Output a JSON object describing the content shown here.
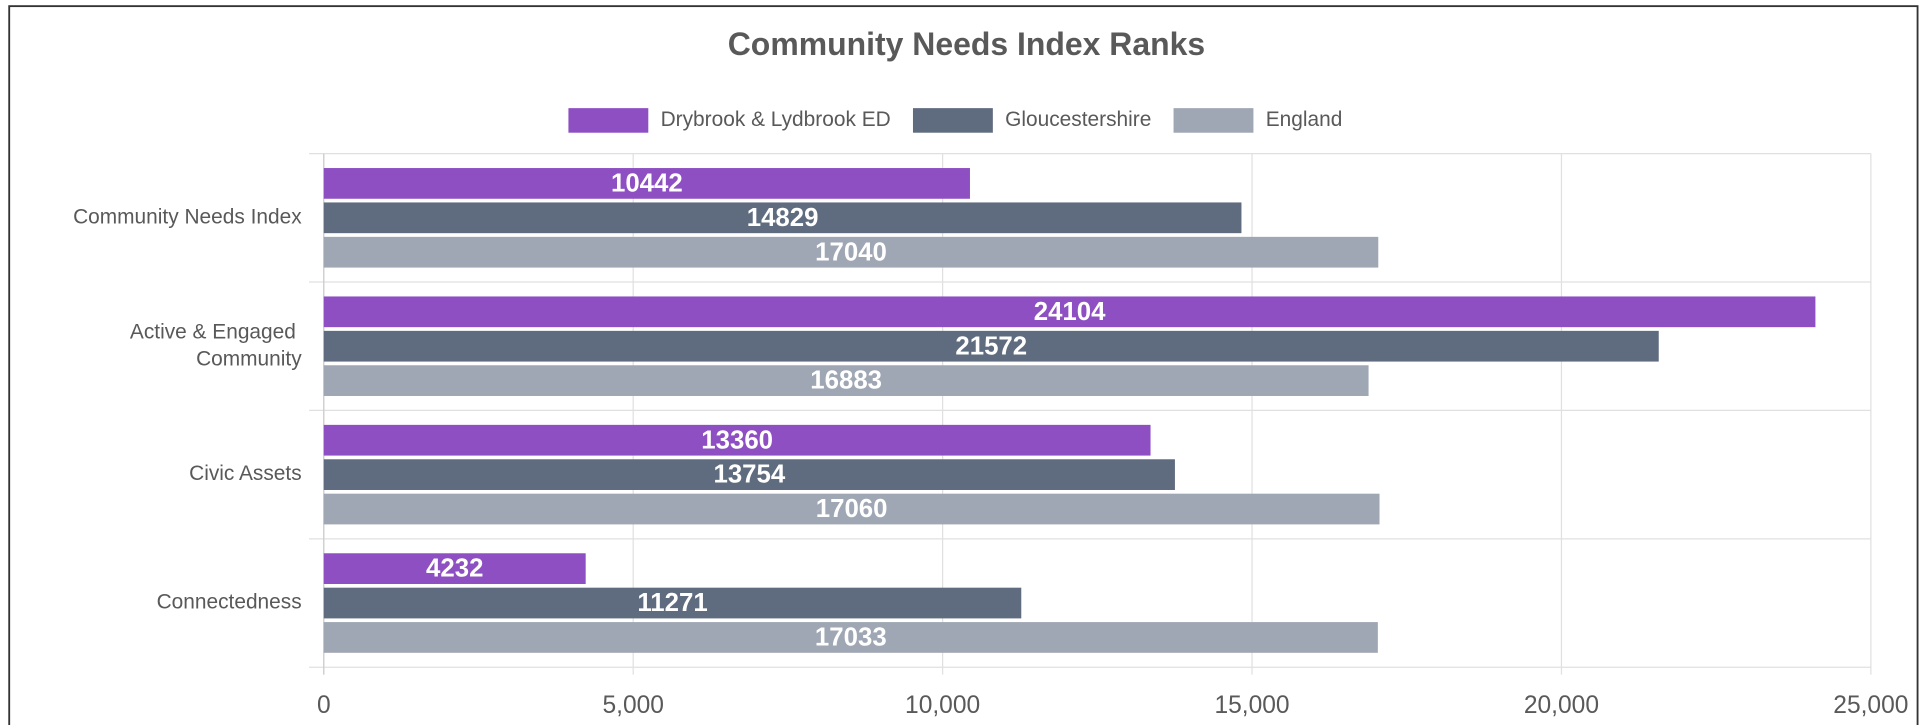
{
  "chart_data": {
    "type": "hbar",
    "title": "Community Needs Index Ranks",
    "categories": [
      "Community Needs Index",
      "Active & Engaged Community",
      "Civic Assets",
      "Connectedness"
    ],
    "series": [
      {
        "name": "Drybrook & Lydbrook ED",
        "color": "#8e4fc2",
        "values": [
          10442,
          24104,
          13360,
          4232
        ]
      },
      {
        "name": "Gloucestershire",
        "color": "#5f6b7e",
        "values": [
          14829,
          21572,
          13754,
          11271
        ]
      },
      {
        "name": "England",
        "color": "#9fa6b4",
        "values": [
          17040,
          16883,
          17060,
          17033
        ]
      }
    ],
    "xlim": [
      0,
      25000
    ],
    "xticks": [
      0,
      {
        "value": 5000,
        "label": "5,000"
      },
      {
        "value": 10000,
        "label": "10,000"
      },
      {
        "value": 15000,
        "label": "15,000"
      },
      {
        "value": 20000,
        "label": "20,000"
      },
      {
        "value": 25000,
        "label": "25,000"
      }
    ],
    "grid": true,
    "legend": "top"
  }
}
